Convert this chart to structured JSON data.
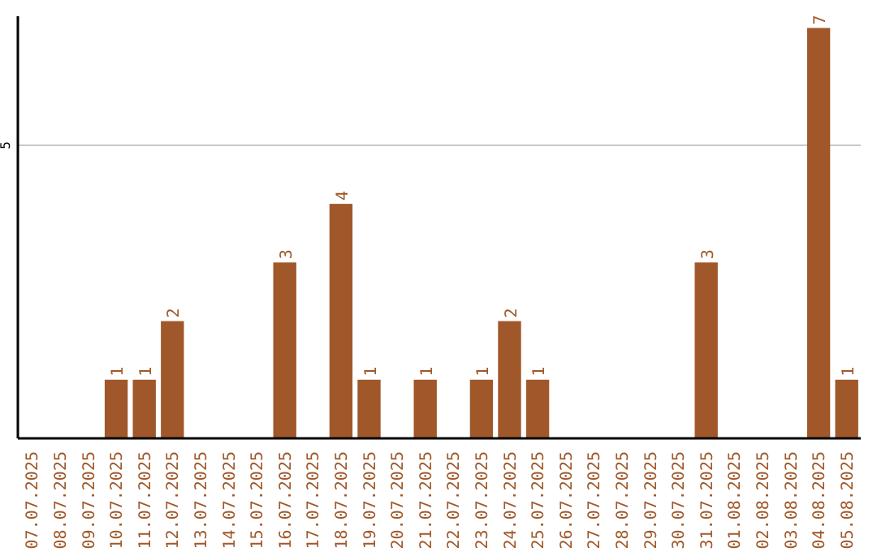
{
  "chart_data": {
    "type": "bar",
    "categories": [
      "07.07.2025",
      "08.07.2025",
      "09.07.2025",
      "10.07.2025",
      "11.07.2025",
      "12.07.2025",
      "13.07.2025",
      "14.07.2025",
      "15.07.2025",
      "16.07.2025",
      "17.07.2025",
      "18.07.2025",
      "19.07.2025",
      "20.07.2025",
      "21.07.2025",
      "22.07.2025",
      "23.07.2025",
      "24.07.2025",
      "25.07.2025",
      "26.07.2025",
      "27.07.2025",
      "28.07.2025",
      "29.07.2025",
      "30.07.2025",
      "31.07.2025",
      "01.08.2025",
      "02.08.2025",
      "03.08.2025",
      "04.08.2025",
      "05.08.2025"
    ],
    "values": [
      0,
      0,
      0,
      1,
      1,
      2,
      0,
      0,
      0,
      3,
      0,
      4,
      1,
      0,
      1,
      0,
      1,
      2,
      1,
      0,
      0,
      0,
      0,
      0,
      3,
      0,
      0,
      0,
      7,
      1
    ],
    "value_labels": [
      null,
      null,
      null,
      "1",
      "1",
      "2",
      null,
      null,
      null,
      "3",
      null,
      "4",
      "1",
      null,
      "1",
      null,
      "1",
      "2",
      "1",
      null,
      null,
      null,
      null,
      null,
      "3",
      null,
      null,
      null,
      "7",
      "1"
    ],
    "color": "#a0582a",
    "ylim": [
      0,
      7.2
    ],
    "yticks": [
      5
    ],
    "grid": "y"
  }
}
